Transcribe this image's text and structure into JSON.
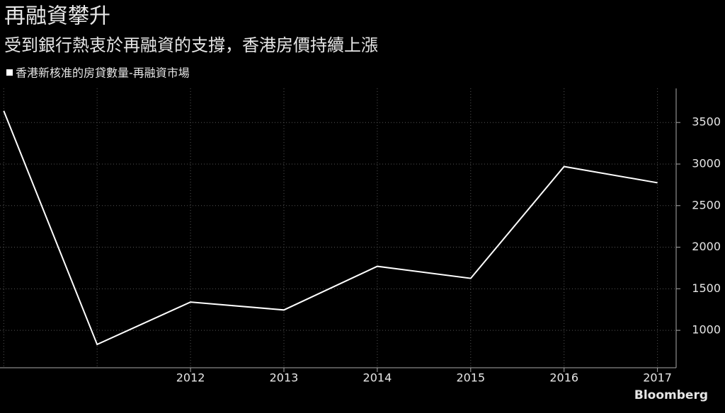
{
  "chart_data": {
    "type": "line",
    "title": "再融資攀升",
    "subtitle": "受到銀行熱衷於再融資的支撐，香港房價持續上漲",
    "x": [
      2010,
      2011,
      2012,
      2013,
      2014,
      2015,
      2016,
      2017
    ],
    "series": [
      {
        "name": "香港新核准的房貸數量-再融資市場",
        "color": "#ffffff",
        "values": [
          3640,
          830,
          1340,
          1245,
          1770,
          1625,
          2970,
          2775
        ]
      }
    ],
    "xlim": [
      2009.96,
      2017.2
    ],
    "xticks": [
      2012,
      2013,
      2014,
      2015,
      2016,
      2017
    ],
    "ylim": [
      550,
      3910
    ],
    "yticks": [
      1000,
      1500,
      2000,
      2500,
      3000,
      3500
    ],
    "grid": true,
    "source": "Bloomberg"
  }
}
